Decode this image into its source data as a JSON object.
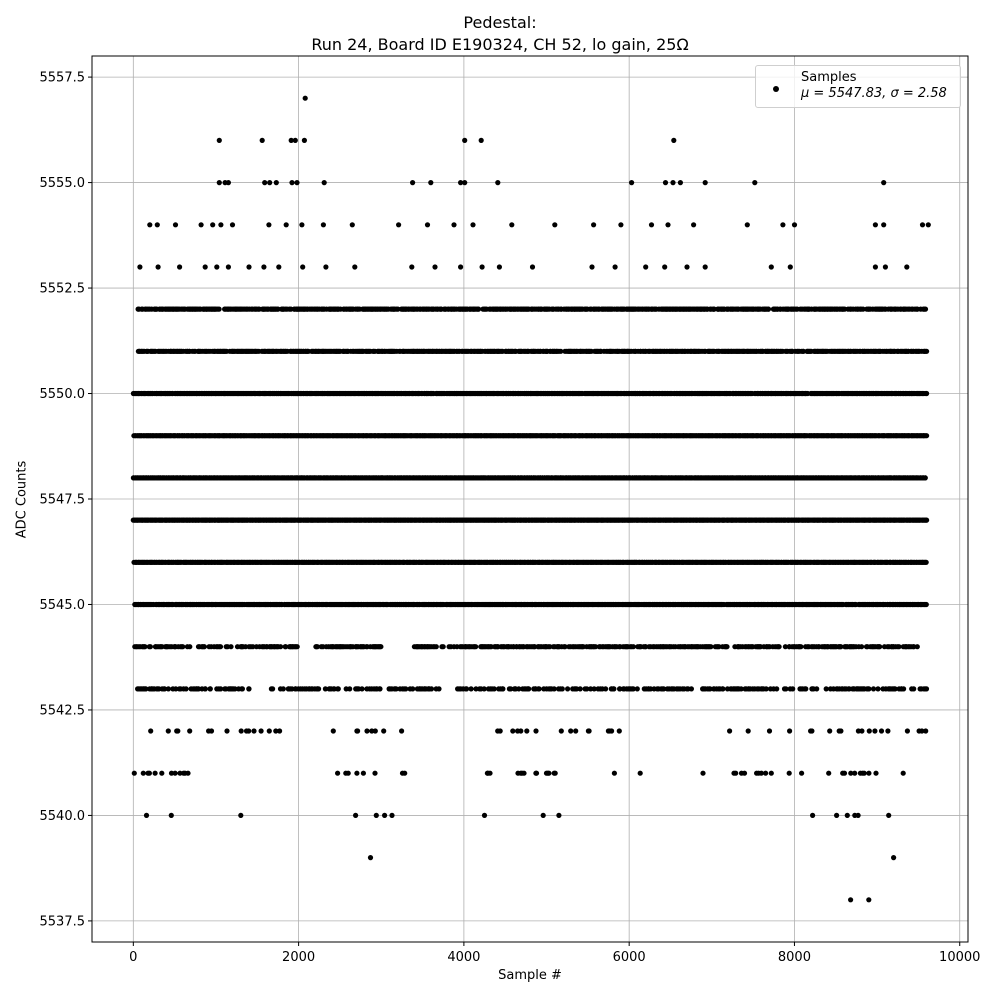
{
  "chart_data": {
    "type": "scatter",
    "title_line1": "Pedestal:",
    "title_line2": "Run 24, Board ID E190324, CH 52, lo gain, 25Ω",
    "xlabel": "Sample #",
    "ylabel": "ADC Counts",
    "xlim": [
      -500,
      10100
    ],
    "ylim": [
      5537.0,
      5558.0
    ],
    "xticks": [
      0,
      2000,
      4000,
      6000,
      8000,
      10000
    ],
    "yticks": [
      5537.5,
      5540.0,
      5542.5,
      5545.0,
      5547.5,
      5550.0,
      5552.5,
      5555.0,
      5557.5
    ],
    "grid": true,
    "legend_position": "top-right",
    "marker_color": "#000000",
    "series": [
      {
        "name": "Samples",
        "stats_label": "μ = 5547.83, σ = 2.58",
        "n_samples": 9600,
        "min_value": 5538,
        "max_value": 5557,
        "points": [
          {
            "x": 2080,
            "y": 5557
          },
          {
            "x": 1040,
            "y": 5556
          },
          {
            "x": 1560,
            "y": 5556
          },
          {
            "x": 1910,
            "y": 5556
          },
          {
            "x": 1960,
            "y": 5556
          },
          {
            "x": 2070,
            "y": 5556
          },
          {
            "x": 4010,
            "y": 5556
          },
          {
            "x": 4210,
            "y": 5556
          },
          {
            "x": 6540,
            "y": 5556
          },
          {
            "x": 1040,
            "y": 5555
          },
          {
            "x": 1110,
            "y": 5555
          },
          {
            "x": 1150,
            "y": 5555
          },
          {
            "x": 1590,
            "y": 5555
          },
          {
            "x": 1650,
            "y": 5555
          },
          {
            "x": 1730,
            "y": 5555
          },
          {
            "x": 1920,
            "y": 5555
          },
          {
            "x": 1980,
            "y": 5555
          },
          {
            "x": 2310,
            "y": 5555
          },
          {
            "x": 3380,
            "y": 5555
          },
          {
            "x": 3600,
            "y": 5555
          },
          {
            "x": 3960,
            "y": 5555
          },
          {
            "x": 4010,
            "y": 5555
          },
          {
            "x": 4410,
            "y": 5555
          },
          {
            "x": 6030,
            "y": 5555
          },
          {
            "x": 6440,
            "y": 5555
          },
          {
            "x": 6530,
            "y": 5555
          },
          {
            "x": 6620,
            "y": 5555
          },
          {
            "x": 6920,
            "y": 5555
          },
          {
            "x": 7520,
            "y": 5555
          },
          {
            "x": 9080,
            "y": 5555
          },
          {
            "x": 200,
            "y": 5554
          },
          {
            "x": 290,
            "y": 5554
          },
          {
            "x": 510,
            "y": 5554
          },
          {
            "x": 820,
            "y": 5554
          },
          {
            "x": 960,
            "y": 5554
          },
          {
            "x": 1060,
            "y": 5554
          },
          {
            "x": 1200,
            "y": 5554
          },
          {
            "x": 1640,
            "y": 5554
          },
          {
            "x": 1850,
            "y": 5554
          },
          {
            "x": 2040,
            "y": 5554
          },
          {
            "x": 2300,
            "y": 5554
          },
          {
            "x": 2650,
            "y": 5554
          },
          {
            "x": 3210,
            "y": 5554
          },
          {
            "x": 3560,
            "y": 5554
          },
          {
            "x": 3880,
            "y": 5554
          },
          {
            "x": 4110,
            "y": 5554
          },
          {
            "x": 4580,
            "y": 5554
          },
          {
            "x": 5100,
            "y": 5554
          },
          {
            "x": 5570,
            "y": 5554
          },
          {
            "x": 5900,
            "y": 5554
          },
          {
            "x": 6270,
            "y": 5554
          },
          {
            "x": 6470,
            "y": 5554
          },
          {
            "x": 6780,
            "y": 5554
          },
          {
            "x": 7430,
            "y": 5554
          },
          {
            "x": 7860,
            "y": 5554
          },
          {
            "x": 8000,
            "y": 5554
          },
          {
            "x": 8980,
            "y": 5554
          },
          {
            "x": 9080,
            "y": 5554
          },
          {
            "x": 9550,
            "y": 5554
          },
          {
            "x": 9620,
            "y": 5554
          },
          {
            "x": 80,
            "y": 5553
          },
          {
            "x": 300,
            "y": 5553
          },
          {
            "x": 560,
            "y": 5553
          },
          {
            "x": 870,
            "y": 5553
          },
          {
            "x": 1010,
            "y": 5553
          },
          {
            "x": 1150,
            "y": 5553
          },
          {
            "x": 1400,
            "y": 5553
          },
          {
            "x": 1580,
            "y": 5553
          },
          {
            "x": 1760,
            "y": 5553
          },
          {
            "x": 2050,
            "y": 5553
          },
          {
            "x": 2330,
            "y": 5553
          },
          {
            "x": 2680,
            "y": 5553
          },
          {
            "x": 3370,
            "y": 5553
          },
          {
            "x": 3650,
            "y": 5553
          },
          {
            "x": 3960,
            "y": 5553
          },
          {
            "x": 4220,
            "y": 5553
          },
          {
            "x": 4430,
            "y": 5553
          },
          {
            "x": 4830,
            "y": 5553
          },
          {
            "x": 5550,
            "y": 5553
          },
          {
            "x": 5830,
            "y": 5553
          },
          {
            "x": 6200,
            "y": 5553
          },
          {
            "x": 6430,
            "y": 5553
          },
          {
            "x": 6700,
            "y": 5553
          },
          {
            "x": 6920,
            "y": 5553
          },
          {
            "x": 7720,
            "y": 5553
          },
          {
            "x": 7950,
            "y": 5553
          },
          {
            "x": 8980,
            "y": 5553
          },
          {
            "x": 9100,
            "y": 5553
          },
          {
            "x": 9360,
            "y": 5553
          },
          {
            "x": 160,
            "y": 5540
          },
          {
            "x": 460,
            "y": 5540
          },
          {
            "x": 1300,
            "y": 5540
          },
          {
            "x": 2690,
            "y": 5540
          },
          {
            "x": 2940,
            "y": 5540
          },
          {
            "x": 3040,
            "y": 5540
          },
          {
            "x": 3130,
            "y": 5540
          },
          {
            "x": 4250,
            "y": 5540
          },
          {
            "x": 4960,
            "y": 5540
          },
          {
            "x": 5150,
            "y": 5540
          },
          {
            "x": 8220,
            "y": 5540
          },
          {
            "x": 8510,
            "y": 5540
          },
          {
            "x": 8640,
            "y": 5540
          },
          {
            "x": 8730,
            "y": 5540
          },
          {
            "x": 8770,
            "y": 5540
          },
          {
            "x": 9140,
            "y": 5540
          },
          {
            "x": 2870,
            "y": 5539
          },
          {
            "x": 9200,
            "y": 5539
          },
          {
            "x": 8680,
            "y": 5538
          },
          {
            "x": 8900,
            "y": 5538
          }
        ],
        "level_coverage": [
          {
            "y": 5552,
            "density": 0.8,
            "gaps": [
              [
                0,
                50
              ],
              [
                9700,
                10100
              ]
            ]
          },
          {
            "y": 5551,
            "density": 0.85,
            "gaps": [
              [
                0,
                50
              ],
              [
                9700,
                10100
              ]
            ]
          },
          {
            "y": 5550,
            "density": 0.97,
            "gaps": [
              [
                9700,
                10100
              ]
            ]
          },
          {
            "y": 5549,
            "density": 1.0,
            "gaps": [
              [
                9700,
                10100
              ]
            ]
          },
          {
            "y": 5548,
            "density": 1.0,
            "gaps": [
              [
                9700,
                10100
              ]
            ]
          },
          {
            "y": 5547,
            "density": 1.0,
            "gaps": [
              [
                9700,
                10100
              ]
            ]
          },
          {
            "y": 5546,
            "density": 1.0,
            "gaps": [
              [
                9700,
                10100
              ]
            ]
          },
          {
            "y": 5545,
            "density": 0.97,
            "gaps": [
              [
                9700,
                10100
              ]
            ]
          },
          {
            "y": 5544,
            "density": 0.6,
            "gaps": [
              [
                700,
                780
              ],
              [
                2000,
                2200
              ],
              [
                3000,
                3400
              ],
              [
                9500,
                10100
              ]
            ]
          },
          {
            "y": 5543,
            "density": 0.42,
            "gaps": [
              [
                1400,
                1650
              ],
              [
                3700,
                3900
              ],
              [
                6800,
                6850
              ],
              [
                9700,
                10100
              ]
            ]
          },
          {
            "y": 5542,
            "density": 0.12,
            "gaps": [
              [
                700,
                900
              ],
              [
                1800,
                2400
              ],
              [
                3500,
                4400
              ],
              [
                6000,
                6900
              ],
              [
                7300,
                7300
              ],
              [
                9700,
                10100
              ]
            ]
          },
          {
            "y": 5541,
            "density": 0.12,
            "gaps": [
              [
                700,
                2400
              ],
              [
                3500,
                4200
              ],
              [
                5300,
                5800
              ],
              [
                6200,
                6800
              ],
              [
                9400,
                10100
              ]
            ]
          }
        ]
      }
    ]
  }
}
